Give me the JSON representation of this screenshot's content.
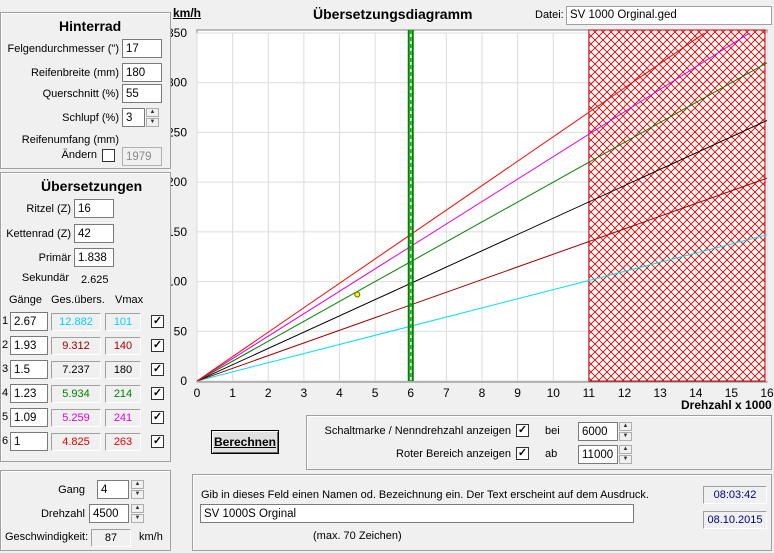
{
  "hinterrad": {
    "title": "Hinterrad",
    "felgen_label": "Felgendurchmesser (\")",
    "felgen_value": "17",
    "reifenbreite_label": "Reifenbreite (mm)",
    "reifenbreite_value": "180",
    "querschnitt_label": "Querschnitt (%)",
    "querschnitt_value": "55",
    "schlupf_label": "Schlupf (%)",
    "schlupf_value": "3",
    "reifenumfang_label1": "Reifenumfang (mm)",
    "reifenumfang_label2": "Ändern",
    "reifenumfang_value": "1979"
  },
  "uebersetzungen": {
    "title": "Übersetzungen",
    "ritzel_label": "Ritzel (Z)",
    "ritzel_value": "16",
    "kettenrad_label": "Kettenrad (Z)",
    "kettenrad_value": "42",
    "primaer_label": "Primär",
    "primaer_value": "1.838",
    "sekundaer_label": "Sekundär",
    "sekundaer_value": "2.625",
    "col_gaenge": "Gänge",
    "col_ges": "Ges.übers.",
    "col_vmax": "Vmax",
    "gears": [
      {
        "num": "1",
        "ratio": "2.67",
        "total": "12.882",
        "vmax": "101",
        "color": "#00d0ff",
        "checked": "✓"
      },
      {
        "num": "2",
        "ratio": "1.93",
        "total": "9.312",
        "vmax": "140",
        "color": "#a00000",
        "checked": "✓"
      },
      {
        "num": "3",
        "ratio": "1.5",
        "total": "7.237",
        "vmax": "180",
        "color": "#000000",
        "checked": "✓"
      },
      {
        "num": "4",
        "ratio": "1.23",
        "total": "5.934",
        "vmax": "214",
        "color": "#008000",
        "checked": "✓"
      },
      {
        "num": "5",
        "ratio": "1.09",
        "total": "5.259",
        "vmax": "241",
        "color": "#e000e0",
        "checked": "✓"
      },
      {
        "num": "6",
        "ratio": "1",
        "total": "4.825",
        "vmax": "263",
        "color": "#e00000",
        "checked": "✓"
      }
    ]
  },
  "gang_panel": {
    "gang_label": "Gang",
    "gang_value": "4",
    "drehzahl_label": "Drehzahl",
    "drehzahl_value": "4500",
    "geschw_label": "Geschwindigkeit:",
    "geschw_value": "87",
    "geschw_unit": "km/h"
  },
  "chart": {
    "title": "Übersetzungsdiagramm",
    "datei_label": "Datei:",
    "datei_value": "SV 1000 Orginal.ged"
  },
  "chart_data": {
    "type": "line",
    "ylabel": "km/h",
    "xlabel": "Drehzahl x 1000",
    "xlim": [
      0,
      16
    ],
    "ylim": [
      0,
      350
    ],
    "xticks": [
      "0",
      "1",
      "2",
      "3",
      "4",
      "5",
      "6",
      "7",
      "8",
      "9",
      "10",
      "11",
      "12",
      "13",
      "14",
      "15",
      "16"
    ],
    "yticks": [
      "0",
      "50",
      "100",
      "150",
      "200",
      "250",
      "300",
      "350"
    ],
    "series": [
      {
        "values": [
          [
            0,
            0
          ],
          [
            16,
            147
          ]
        ],
        "color": "#00e0f0"
      },
      {
        "values": [
          [
            0,
            0
          ],
          [
            16,
            204
          ]
        ],
        "color": "#a00000"
      },
      {
        "values": [
          [
            0,
            0
          ],
          [
            16,
            262
          ]
        ],
        "color": "#000000"
      },
      {
        "values": [
          [
            0,
            0
          ],
          [
            16,
            320
          ]
        ],
        "color": "#008000"
      },
      {
        "values": [
          [
            0,
            0
          ],
          [
            16,
            361
          ]
        ],
        "color": "#e000e0"
      },
      {
        "values": [
          [
            0,
            0
          ],
          [
            16,
            393
          ]
        ],
        "color": "#ff0000"
      }
    ],
    "shift_marker_x": 6,
    "red_zone_from_x": 11,
    "current_point": {
      "x": 4.5,
      "y": 87
    },
    "grid": true
  },
  "controls": {
    "berechnen_label": "Berechnen",
    "schaltmarke_label": "Schaltmarke / Nenndrehzahl anzeigen",
    "schaltmarke_checked": "✓",
    "bei_label": "bei",
    "bei_value": "6000",
    "roter_label": "Roter Bereich anzeigen",
    "roter_checked": "✓",
    "ab_label": "ab",
    "ab_value": "11000"
  },
  "notes": {
    "hint": "Gib in dieses Feld einen Namen od. Bezeichnung ein. Der Text erscheint auf dem Ausdruck.",
    "name_value": "SV 1000S Orginal",
    "max_hint": "(max. 70 Zeichen)",
    "time": "08:03:42",
    "date": "08.10.2015"
  }
}
